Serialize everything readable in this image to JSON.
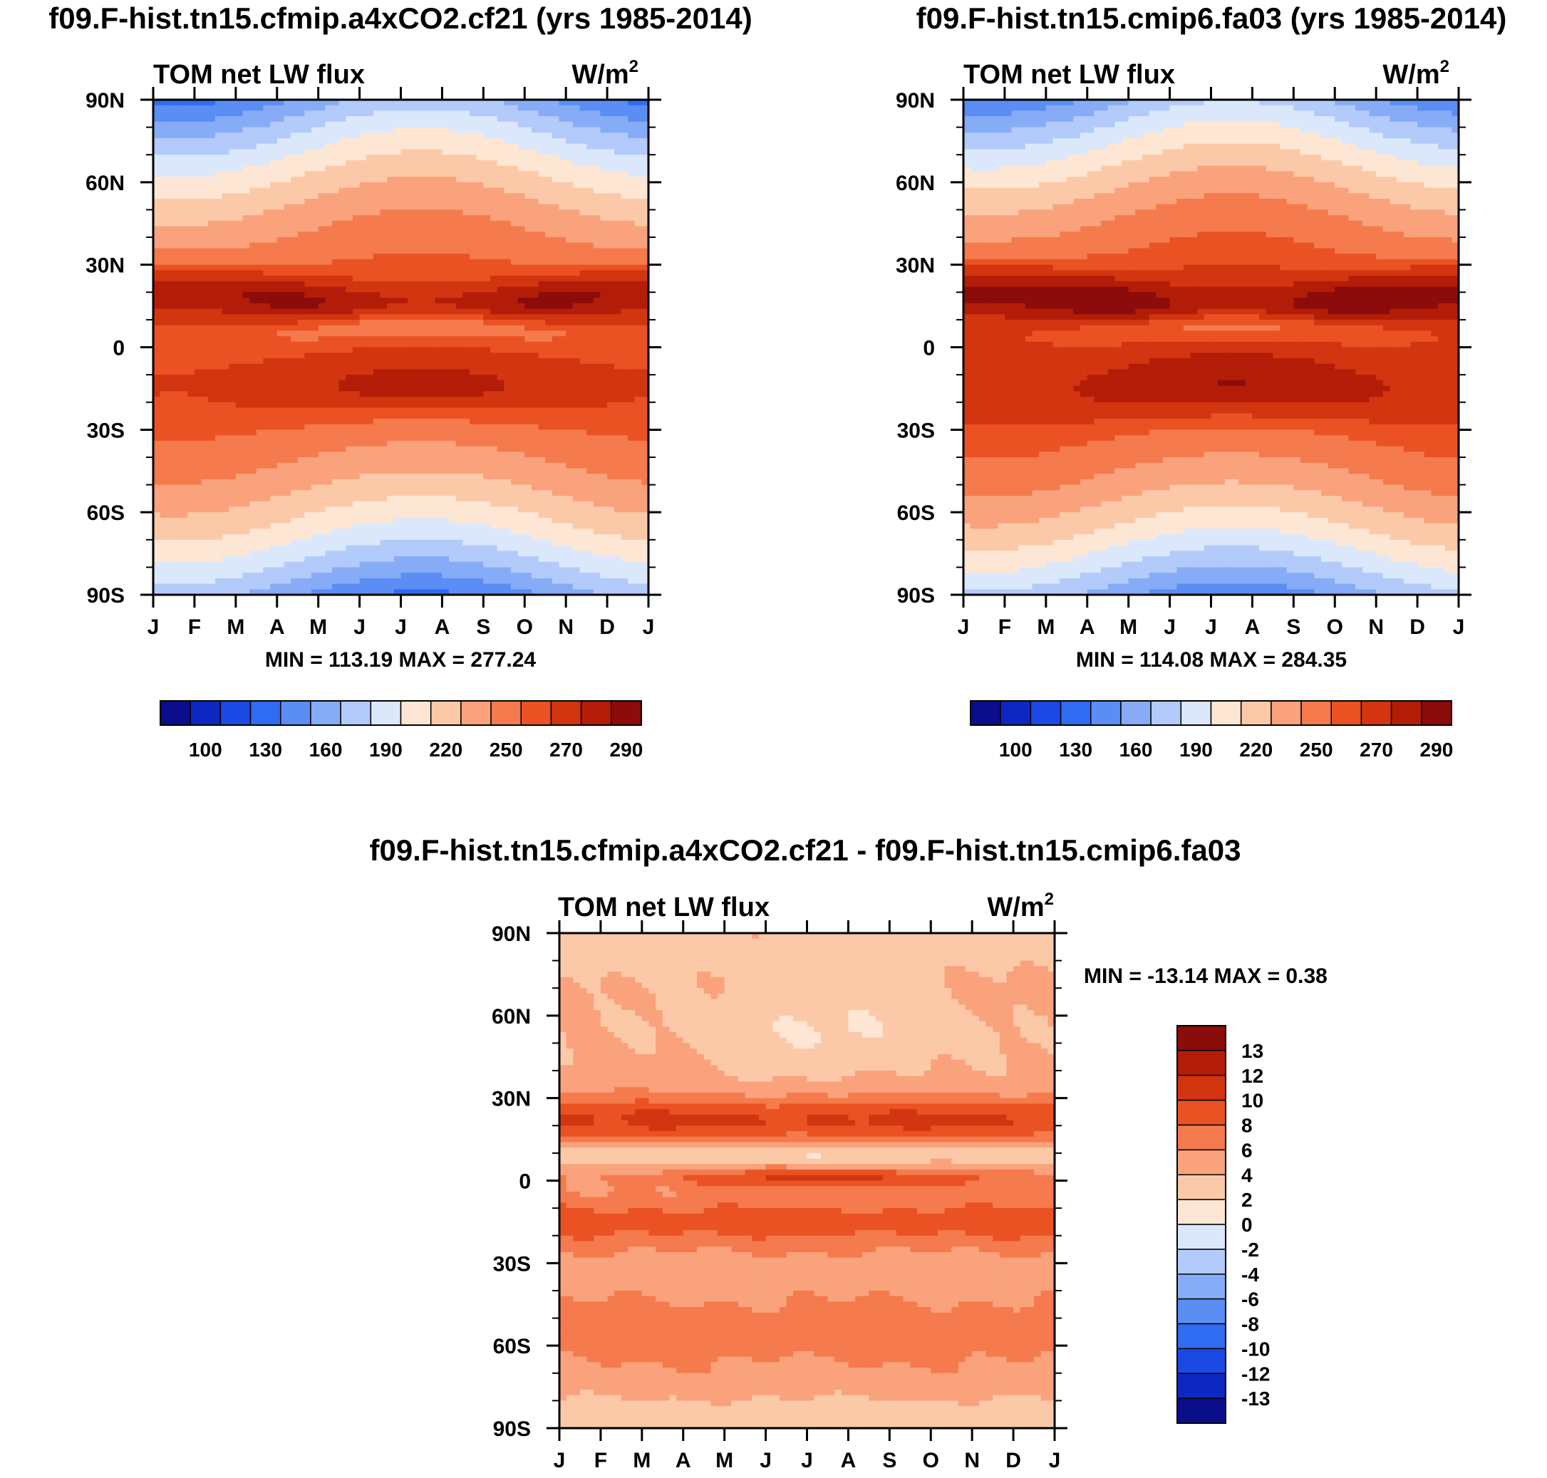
{
  "palette": [
    "#0a0e8a",
    "#0d28c0",
    "#1a49e4",
    "#2f6cf2",
    "#5a8ef4",
    "#87acf7",
    "#b3cbfa",
    "#dbe8fb",
    "#fde6d3",
    "#fcc9a8",
    "#f9a27c",
    "#f57a4d",
    "#ea5223",
    "#d23510",
    "#b31d08",
    "#8c0b0b"
  ],
  "panels": [
    {
      "title": "f09.F-hist.tn15.cfmip.a4xCO2.cf21 (yrs 1985-2014)",
      "variable": "TOM net LW flux",
      "units_base": "W/m",
      "units_exp": "2",
      "minmax": "MIN = 113.19 MAX = 277.24",
      "colorbar_labels": [
        "100",
        "130",
        "160",
        "190",
        "220",
        "250",
        "270",
        "290"
      ]
    },
    {
      "title": "f09.F-hist.tn15.cmip6.fa03 (yrs 1985-2014)",
      "variable": "TOM net LW flux",
      "units_base": "W/m",
      "units_exp": "2",
      "minmax": "MIN = 114.08 MAX = 284.35",
      "colorbar_labels": [
        "100",
        "130",
        "160",
        "190",
        "220",
        "250",
        "270",
        "290"
      ]
    },
    {
      "title": "f09.F-hist.tn15.cfmip.a4xCO2.cf21 - f09.F-hist.tn15.cmip6.fa03",
      "variable": "TOM net LW flux",
      "units_base": "W/m",
      "units_exp": "2",
      "minmax": "MIN = -13.14 MAX =   0.38",
      "colorbar_labels": [
        "13",
        "12",
        "10",
        "8",
        "6",
        "4",
        "2",
        "0",
        "-2",
        "-4",
        "-6",
        "-8",
        "-10",
        "-12",
        "-13"
      ]
    }
  ],
  "chart_data": [
    {
      "type": "heatmap",
      "title": "f09.F-hist.tn15.cfmip.a4xCO2.cf21 (yrs 1985-2014)",
      "subtitle": "TOM net LW flux",
      "units": "W/m^2",
      "x_ticks": [
        "J",
        "F",
        "M",
        "A",
        "M",
        "J",
        "J",
        "A",
        "S",
        "O",
        "N",
        "D",
        "J"
      ],
      "y_ticks": [
        "90N",
        "60N",
        "30N",
        "0",
        "30S",
        "60S",
        "90S"
      ],
      "y_range": [
        -90,
        90
      ],
      "levels": [
        85,
        100,
        115,
        130,
        145,
        160,
        175,
        190,
        205,
        220,
        235,
        250,
        260,
        270,
        280,
        290
      ],
      "min": 113.19,
      "max": 277.24
    },
    {
      "type": "heatmap",
      "title": "f09.F-hist.tn15.cmip6.fa03 (yrs 1985-2014)",
      "subtitle": "TOM net LW flux",
      "units": "W/m^2",
      "x_ticks": [
        "J",
        "F",
        "M",
        "A",
        "M",
        "J",
        "J",
        "A",
        "S",
        "O",
        "N",
        "D",
        "J"
      ],
      "y_ticks": [
        "90N",
        "60N",
        "30N",
        "0",
        "30S",
        "60S",
        "90S"
      ],
      "y_range": [
        -90,
        90
      ],
      "levels": [
        85,
        100,
        115,
        130,
        145,
        160,
        175,
        190,
        205,
        220,
        235,
        250,
        260,
        270,
        280,
        290
      ],
      "min": 114.08,
      "max": 284.35
    },
    {
      "type": "heatmap",
      "title": "f09.F-hist.tn15.cfmip.a4xCO2.cf21 - f09.F-hist.tn15.cmip6.fa03",
      "subtitle": "TOM net LW flux",
      "units": "W/m^2",
      "x_ticks": [
        "J",
        "F",
        "M",
        "A",
        "M",
        "J",
        "J",
        "A",
        "S",
        "O",
        "N",
        "D",
        "J"
      ],
      "y_ticks": [
        "90N",
        "60N",
        "30N",
        "0",
        "30S",
        "60S",
        "90S"
      ],
      "y_range": [
        -90,
        90
      ],
      "levels": [
        -13,
        -12,
        -10,
        -8,
        -6,
        -4,
        -2,
        0,
        2,
        4,
        6,
        8,
        10,
        12,
        13
      ],
      "min": -13.14,
      "max": 0.38
    }
  ]
}
